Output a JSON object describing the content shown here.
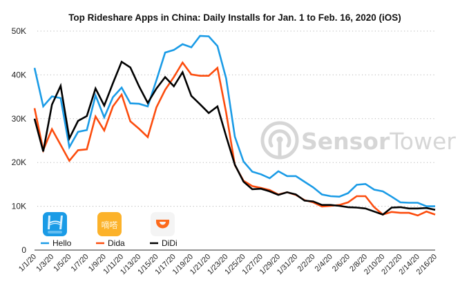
{
  "chart_data": {
    "type": "line",
    "title": "Top Rideshare Apps in China: Daily Installs for Jan. 1 to Feb. 16, 2020 (iOS)",
    "xlabel": "",
    "ylabel": "",
    "ylim": [
      0,
      50000
    ],
    "yticks": [
      0,
      10000,
      20000,
      30000,
      40000,
      50000
    ],
    "ytick_labels": [
      "0",
      "10K",
      "20K",
      "30K",
      "40K",
      "50K"
    ],
    "grid": true,
    "legend_position": "bottom-left",
    "x": [
      "1/1/20",
      "1/2/20",
      "1/3/20",
      "1/4/20",
      "1/5/20",
      "1/6/20",
      "1/7/20",
      "1/8/20",
      "1/9/20",
      "1/10/20",
      "1/11/20",
      "1/12/20",
      "1/13/20",
      "1/14/20",
      "1/15/20",
      "1/16/20",
      "1/17/20",
      "1/18/20",
      "1/19/20",
      "1/20/20",
      "1/21/20",
      "1/22/20",
      "1/23/20",
      "1/24/20",
      "1/25/20",
      "1/26/20",
      "1/27/20",
      "1/28/20",
      "1/29/20",
      "1/30/20",
      "1/31/20",
      "2/1/20",
      "2/2/20",
      "2/3/20",
      "2/4/20",
      "2/5/20",
      "2/6/20",
      "2/7/20",
      "2/8/20",
      "2/9/20",
      "2/10/20",
      "2/11/20",
      "2/12/20",
      "2/13/20",
      "2/14/20",
      "2/15/20",
      "2/16/20"
    ],
    "xtick_labels": [
      "1/1/20",
      "1/3/20",
      "1/5/20",
      "1/7/20",
      "1/9/20",
      "1/11/20",
      "1/13/20",
      "1/15/20",
      "1/17/20",
      "1/19/20",
      "1/21/20",
      "1/23/20",
      "1/25/20",
      "1/27/20",
      "1/29/20",
      "1/31/20",
      "2/2/20",
      "2/4/20",
      "2/6/20",
      "2/8/20",
      "2/10/20",
      "2/12/20",
      "2/14/20",
      "2/16/20"
    ],
    "series": [
      {
        "name": "Hello",
        "color": "#1a9be6",
        "values": [
          41600,
          32800,
          35100,
          34700,
          23500,
          27000,
          27400,
          35300,
          30300,
          34900,
          37100,
          33500,
          33400,
          32800,
          38800,
          45100,
          45700,
          47000,
          46300,
          48900,
          48800,
          46600,
          39200,
          25900,
          20200,
          17900,
          17300,
          16400,
          18000,
          16900,
          16900,
          15600,
          14300,
          12700,
          12300,
          12200,
          13000,
          14900,
          15100,
          13800,
          13400,
          12200,
          10900,
          10800,
          10800,
          10000,
          10000
        ]
      },
      {
        "name": "Dida",
        "color": "#fc4c0d",
        "values": [
          32400,
          22800,
          27600,
          24000,
          20400,
          22800,
          23000,
          30500,
          27300,
          32800,
          35500,
          29400,
          27700,
          25800,
          32600,
          36600,
          39500,
          42800,
          40100,
          39800,
          39800,
          41600,
          31400,
          19400,
          15800,
          14600,
          14200,
          13700,
          12700,
          13200,
          12600,
          11400,
          10900,
          9950,
          10100,
          10300,
          10900,
          12300,
          12300,
          9800,
          8100,
          8700,
          8500,
          8500,
          7900,
          8800,
          8100
        ]
      },
      {
        "name": "DiDi",
        "color": "#000000",
        "values": [
          30000,
          22500,
          33200,
          37500,
          25500,
          29500,
          30600,
          36900,
          33000,
          38100,
          43000,
          41700,
          37400,
          33600,
          36900,
          39500,
          37400,
          40600,
          35200,
          33300,
          31300,
          32800,
          26000,
          19500,
          15600,
          13900,
          14000,
          13400,
          12600,
          13200,
          12700,
          11300,
          11100,
          10300,
          10300,
          10100,
          9800,
          9700,
          9500,
          8800,
          8100,
          9700,
          9800,
          9500,
          9500,
          9600,
          9200
        ]
      }
    ],
    "legend": [
      {
        "label": "Hello",
        "icon": "hello-app-icon",
        "icon_text": "H",
        "icon_subtext": "哈啰出行",
        "icon_color": "#1a9be6"
      },
      {
        "label": "Dida",
        "icon": "dida-app-icon",
        "icon_text": "嘀嗒",
        "icon_color": "#fcb22a"
      },
      {
        "label": "DiDi",
        "icon": "didi-app-icon",
        "icon_color": "#fc6a1c"
      }
    ],
    "watermark": {
      "bold": "Sensor",
      "light": "Tower",
      "icon": "sensortower-logo-icon"
    }
  }
}
